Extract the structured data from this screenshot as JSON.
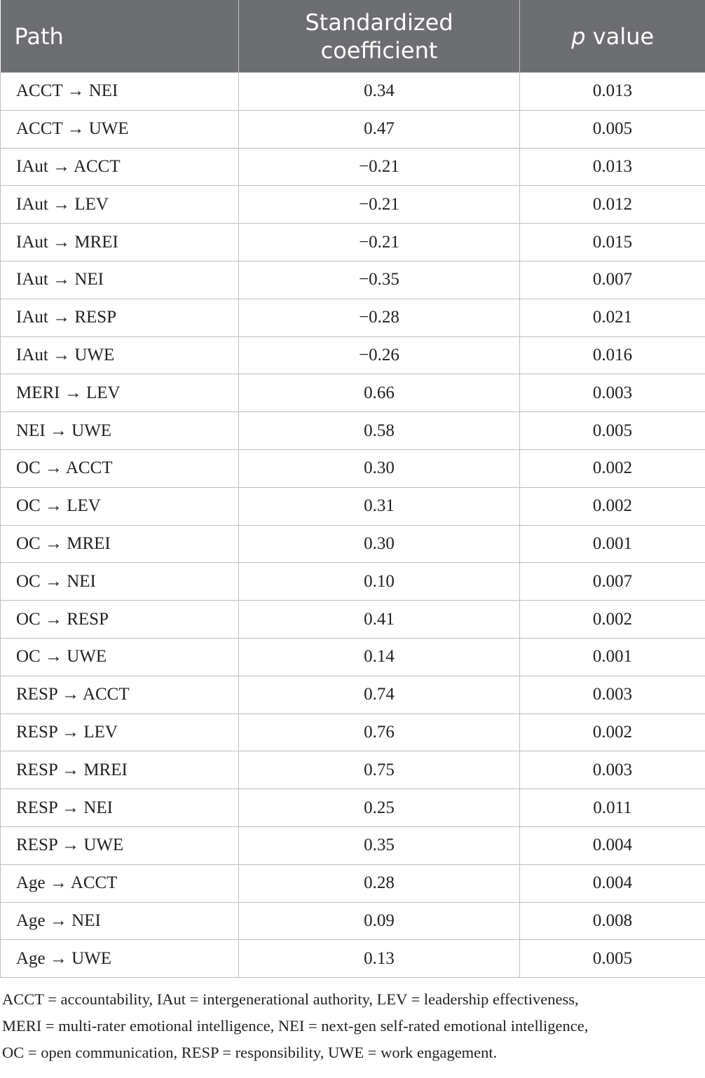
{
  "table": {
    "header": {
      "path": "Path",
      "coefficient": "Standardized coefficient",
      "p_value": {
        "symbol": "p",
        "label": "value"
      }
    },
    "rows": [
      [
        "ACCT → NEI",
        "0.34",
        "0.013"
      ],
      [
        "ACCT → UWE",
        "0.47",
        "0.005"
      ],
      [
        "IAut → ACCT",
        "−0.21",
        "0.013"
      ],
      [
        "IAut → LEV",
        "−0.21",
        "0.012"
      ],
      [
        "IAut → MREI",
        "−0.21",
        "0.015"
      ],
      [
        "IAut → NEI",
        "−0.35",
        "0.007"
      ],
      [
        "IAut → RESP",
        "−0.28",
        "0.021"
      ],
      [
        "IAut → UWE",
        "−0.26",
        "0.016"
      ],
      [
        "MERI → LEV",
        "0.66",
        "0.003"
      ],
      [
        "NEI → UWE",
        "0.58",
        "0.005"
      ],
      [
        "OC → ACCT",
        "0.30",
        "0.002"
      ],
      [
        "OC → LEV",
        "0.31",
        "0.002"
      ],
      [
        "OC → MREI",
        "0.30",
        "0.001"
      ],
      [
        "OC → NEI",
        "0.10",
        "0.007"
      ],
      [
        "OC → RESP",
        "0.41",
        "0.002"
      ],
      [
        "OC → UWE",
        "0.14",
        "0.001"
      ],
      [
        "RESP → ACCT",
        "0.74",
        "0.003"
      ],
      [
        "RESP → LEV",
        "0.76",
        "0.002"
      ],
      [
        "RESP → MREI",
        "0.75",
        "0.003"
      ],
      [
        "RESP → NEI",
        "0.25",
        "0.011"
      ],
      [
        "RESP → UWE",
        "0.35",
        "0.004"
      ],
      [
        "Age → ACCT",
        "0.28",
        "0.004"
      ],
      [
        "Age → NEI",
        "0.09",
        "0.008"
      ],
      [
        "Age → UWE",
        "0.13",
        "0.005"
      ]
    ]
  },
  "footnote": [
    "ACCT = accountability, IAut = intergenerational authority, LEV = leadership effectiveness,",
    "MERI = multi-rater emotional intelligence, NEI = next-gen self-rated emotional intelligence,",
    "OC = open communication, RESP = responsibility, UWE = work engagement."
  ]
}
